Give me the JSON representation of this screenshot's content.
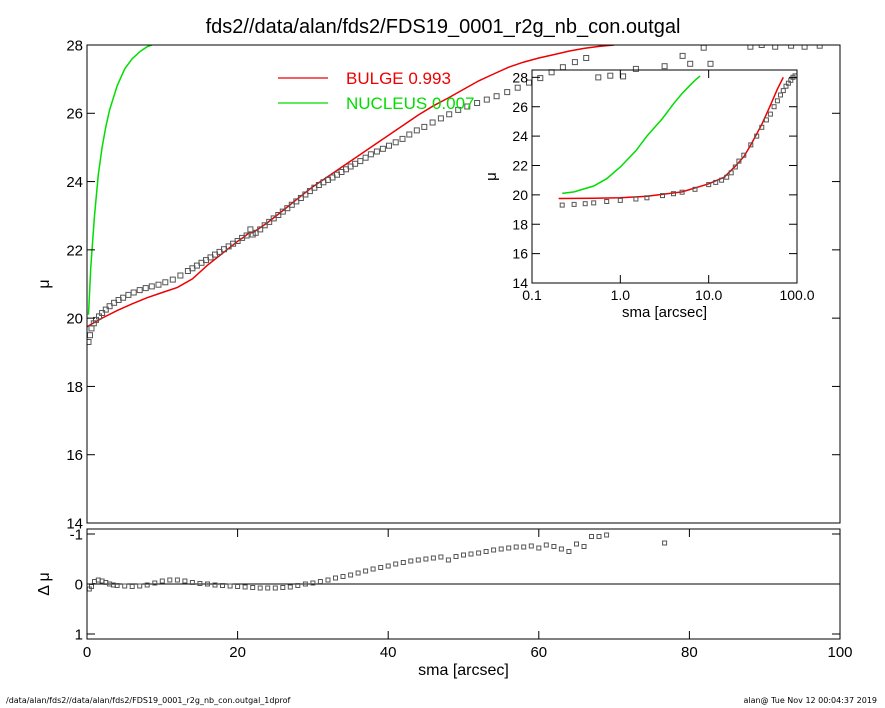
{
  "header": {
    "title": "fds2//data/alan/fds2/FDS19_0001_r2g_nb_con.outgal"
  },
  "footer": {
    "left": "/data/alan/fds2//data/alan/fds2/FDS19_0001_r2g_nb_con.outgal_1dprof",
    "right": "alan@  Tue Nov 12 00:04:37 2019"
  },
  "colors": {
    "bulge": "#ee0000",
    "nucleus": "#00dd00",
    "data": "#555555",
    "axis": "#000000"
  },
  "legend": [
    {
      "label": "BULGE  0.993",
      "color": "#ee0000"
    },
    {
      "label": "NUCLEUS  0.007",
      "color": "#00dd00"
    }
  ],
  "chart_data": [
    {
      "id": "main",
      "type": "scatter",
      "xlabel": "",
      "ylabel": "μ",
      "xlim": [
        0,
        100
      ],
      "ylim": [
        28,
        14
      ],
      "yticks": [
        14,
        16,
        18,
        20,
        22,
        24,
        26,
        28
      ],
      "yticklabels": [
        "14",
        "16",
        "18",
        "20",
        "22",
        "24",
        "26",
        "28"
      ],
      "observed": {
        "x": [
          0.2,
          0.4,
          0.6,
          0.9,
          1.2,
          1.6,
          2.0,
          2.5,
          3.0,
          3.6,
          4.2,
          4.8,
          5.5,
          6.2,
          7.0,
          7.8,
          8.6,
          9.5,
          10.4,
          11.4,
          12.4,
          13.4,
          14.0,
          14.6,
          15.2,
          15.8,
          16.4,
          17.0,
          17.6,
          18.2,
          18.8,
          19.4,
          20.0,
          20.6,
          21.2,
          21.7,
          22.0,
          22.4,
          23.0,
          23.6,
          24.2,
          24.8,
          25.4,
          26.0,
          26.6,
          27.2,
          27.8,
          28.4,
          29.0,
          29.6,
          30.2,
          30.8,
          31.4,
          32.0,
          32.6,
          33.2,
          33.8,
          34.4,
          35.0,
          35.6,
          36.3,
          37.0,
          37.7,
          38.5,
          39.3,
          40.1,
          41.0,
          41.9,
          42.8,
          43.8,
          44.8,
          45.9,
          47.0,
          48.1,
          49.3,
          50.5,
          51.8,
          53.1,
          54.4,
          55.8,
          57.2,
          58.7,
          60.2,
          61.7,
          63.2,
          64.8,
          66.3,
          67.9,
          69.5,
          71.2,
          72.9,
          76.7,
          79.1,
          80.1,
          81.9,
          82.8,
          88.1,
          89.6,
          91.4,
          93.5,
          95.3,
          97.3
        ],
        "y": [
          19.3,
          19.5,
          19.7,
          19.85,
          19.95,
          20.05,
          20.15,
          20.25,
          20.35,
          20.45,
          20.53,
          20.6,
          20.68,
          20.75,
          20.82,
          20.88,
          20.93,
          20.98,
          21.05,
          21.13,
          21.25,
          21.38,
          21.46,
          21.54,
          21.62,
          21.7,
          21.78,
          21.86,
          21.94,
          22.02,
          22.1,
          22.18,
          22.26,
          22.35,
          22.42,
          22.6,
          22.45,
          22.5,
          22.6,
          22.72,
          22.82,
          22.92,
          23.02,
          23.12,
          23.22,
          23.32,
          23.42,
          23.52,
          23.62,
          23.72,
          23.82,
          23.9,
          23.98,
          24.05,
          24.12,
          24.2,
          24.28,
          24.36,
          24.44,
          24.52,
          24.6,
          24.7,
          24.8,
          24.88,
          24.96,
          25.05,
          25.15,
          25.25,
          25.38,
          25.5,
          25.6,
          25.73,
          25.85,
          25.97,
          26.1,
          26.2,
          26.3,
          26.4,
          26.5,
          26.62,
          26.75,
          26.9,
          27.03,
          27.2,
          27.35,
          27.5,
          27.62,
          27.05,
          27.1,
          27.08,
          27.3,
          27.38,
          27.68,
          27.45,
          27.92,
          27.45,
          27.95,
          28.0,
          27.95,
          27.98,
          27.95,
          27.98
        ]
      },
      "bulge": {
        "x": [
          0,
          2,
          4,
          6,
          8,
          10,
          12,
          14,
          16,
          18,
          20,
          21,
          21.5,
          22,
          24,
          26,
          28,
          30,
          32,
          34,
          36,
          38,
          40,
          42,
          44,
          46,
          48,
          50,
          52,
          54,
          56,
          58,
          60,
          62,
          64,
          66,
          68,
          70
        ],
        "y": [
          19.75,
          20.0,
          20.22,
          20.42,
          20.6,
          20.75,
          20.9,
          21.15,
          21.55,
          21.9,
          22.25,
          22.4,
          22.5,
          22.5,
          22.8,
          23.15,
          23.5,
          23.85,
          24.15,
          24.45,
          24.75,
          25.05,
          25.35,
          25.65,
          25.95,
          26.22,
          26.45,
          26.7,
          26.95,
          27.15,
          27.35,
          27.5,
          27.62,
          27.72,
          27.82,
          27.9,
          27.96,
          28.0
        ]
      },
      "nucleus": {
        "x": [
          0.2,
          0.5,
          1,
          1.5,
          2,
          2.5,
          3,
          4,
          5,
          6,
          7,
          8,
          8.6
        ],
        "y": [
          20.1,
          21.5,
          23.0,
          24.2,
          25.0,
          25.6,
          26.1,
          26.8,
          27.3,
          27.6,
          27.8,
          27.95,
          28.0
        ]
      }
    },
    {
      "id": "residual",
      "type": "scatter",
      "xlabel": "sma [arcsec]",
      "ylabel": "Δ μ",
      "xlim": [
        0,
        100
      ],
      "ylim": [
        -1.1,
        1.1
      ],
      "xticks": [
        0,
        20,
        40,
        60,
        80,
        100
      ],
      "xticklabels": [
        "0",
        "20",
        "40",
        "60",
        "80",
        "100"
      ],
      "yticks": [
        1,
        0,
        -1
      ],
      "yticklabels": [
        "1",
        "0",
        "-1"
      ],
      "observed": {
        "x": [
          0.3,
          0.6,
          1,
          1.5,
          2,
          2.5,
          3,
          3.5,
          4,
          5,
          6,
          7,
          8,
          9,
          10,
          11,
          12,
          13,
          14,
          15,
          16,
          17,
          18,
          19,
          20,
          21,
          22,
          23,
          24,
          25,
          26,
          27,
          28,
          29,
          30,
          31,
          32,
          33,
          34,
          35,
          36,
          37,
          38,
          39,
          40,
          41,
          42,
          43,
          44,
          45,
          46,
          47,
          48,
          49,
          50,
          51,
          52,
          53,
          54,
          55,
          56,
          57,
          58,
          59,
          60,
          61,
          62,
          63,
          64,
          65,
          66,
          67,
          68,
          69,
          76.7
        ],
        "y": [
          0.1,
          0.05,
          -0.05,
          -0.08,
          -0.06,
          -0.03,
          0.0,
          0.02,
          0.03,
          0.04,
          0.05,
          0.04,
          0.02,
          -0.02,
          -0.06,
          -0.08,
          -0.08,
          -0.06,
          -0.03,
          -0.01,
          0.0,
          0.02,
          0.03,
          0.04,
          0.05,
          0.06,
          0.07,
          0.08,
          0.08,
          0.08,
          0.07,
          0.06,
          0.03,
          0.0,
          -0.02,
          -0.05,
          -0.08,
          -0.12,
          -0.15,
          -0.18,
          -0.22,
          -0.26,
          -0.3,
          -0.33,
          -0.36,
          -0.4,
          -0.43,
          -0.46,
          -0.48,
          -0.5,
          -0.52,
          -0.54,
          -0.48,
          -0.55,
          -0.58,
          -0.6,
          -0.62,
          -0.65,
          -0.68,
          -0.7,
          -0.72,
          -0.74,
          -0.74,
          -0.76,
          -0.72,
          -0.78,
          -0.75,
          -0.7,
          -0.65,
          -0.8,
          -0.75,
          -0.95,
          -0.95,
          -0.98,
          -0.82
        ]
      }
    },
    {
      "id": "inset",
      "type": "scatter",
      "xlabel": "sma [arcsec]",
      "ylabel": "μ",
      "xscale": "log",
      "xlim": [
        0.1,
        100
      ],
      "ylim": [
        28.5,
        14
      ],
      "xticks": [
        0.1,
        1.0,
        10.0,
        100.0
      ],
      "xticklabels": [
        "0.1",
        "1.0",
        "10.0",
        "100.0"
      ],
      "yticks": [
        14,
        16,
        18,
        20,
        22,
        24,
        26,
        28
      ],
      "yticklabels": [
        "14",
        "16",
        "18",
        "20",
        "22",
        "24",
        "26",
        "28"
      ],
      "observed": {
        "x": [
          0.22,
          0.3,
          0.4,
          0.5,
          0.7,
          1.0,
          1.5,
          2,
          3,
          4,
          5,
          7,
          10,
          12,
          14,
          16,
          18,
          20,
          22,
          25,
          30,
          35,
          40,
          45,
          50,
          55,
          60,
          65,
          70,
          75,
          80,
          85,
          90,
          95
        ],
        "y": [
          19.3,
          19.35,
          19.4,
          19.45,
          19.55,
          19.62,
          19.72,
          19.8,
          19.95,
          20.08,
          20.18,
          20.38,
          20.7,
          20.85,
          21.0,
          21.2,
          21.5,
          21.9,
          22.3,
          22.7,
          23.4,
          24.0,
          24.6,
          25.1,
          25.5,
          26.0,
          26.4,
          26.8,
          27.1,
          27.4,
          27.6,
          27.8,
          28.0,
          28.1
        ]
      },
      "bulge": {
        "x": [
          0.2,
          0.5,
          1,
          2,
          5,
          10,
          15,
          20,
          25,
          30,
          40,
          50,
          60,
          70
        ],
        "y": [
          19.75,
          19.77,
          19.8,
          19.9,
          20.2,
          20.75,
          21.2,
          21.95,
          22.6,
          23.4,
          24.8,
          26.1,
          27.2,
          28.0
        ]
      },
      "nucleus": {
        "x": [
          0.22,
          0.3,
          0.5,
          0.7,
          1.0,
          1.5,
          2,
          3,
          4,
          5,
          6,
          7,
          8
        ],
        "y": [
          20.1,
          20.2,
          20.6,
          21.1,
          21.9,
          23.0,
          24.0,
          25.2,
          26.2,
          26.9,
          27.4,
          27.8,
          28.1
        ]
      }
    }
  ]
}
